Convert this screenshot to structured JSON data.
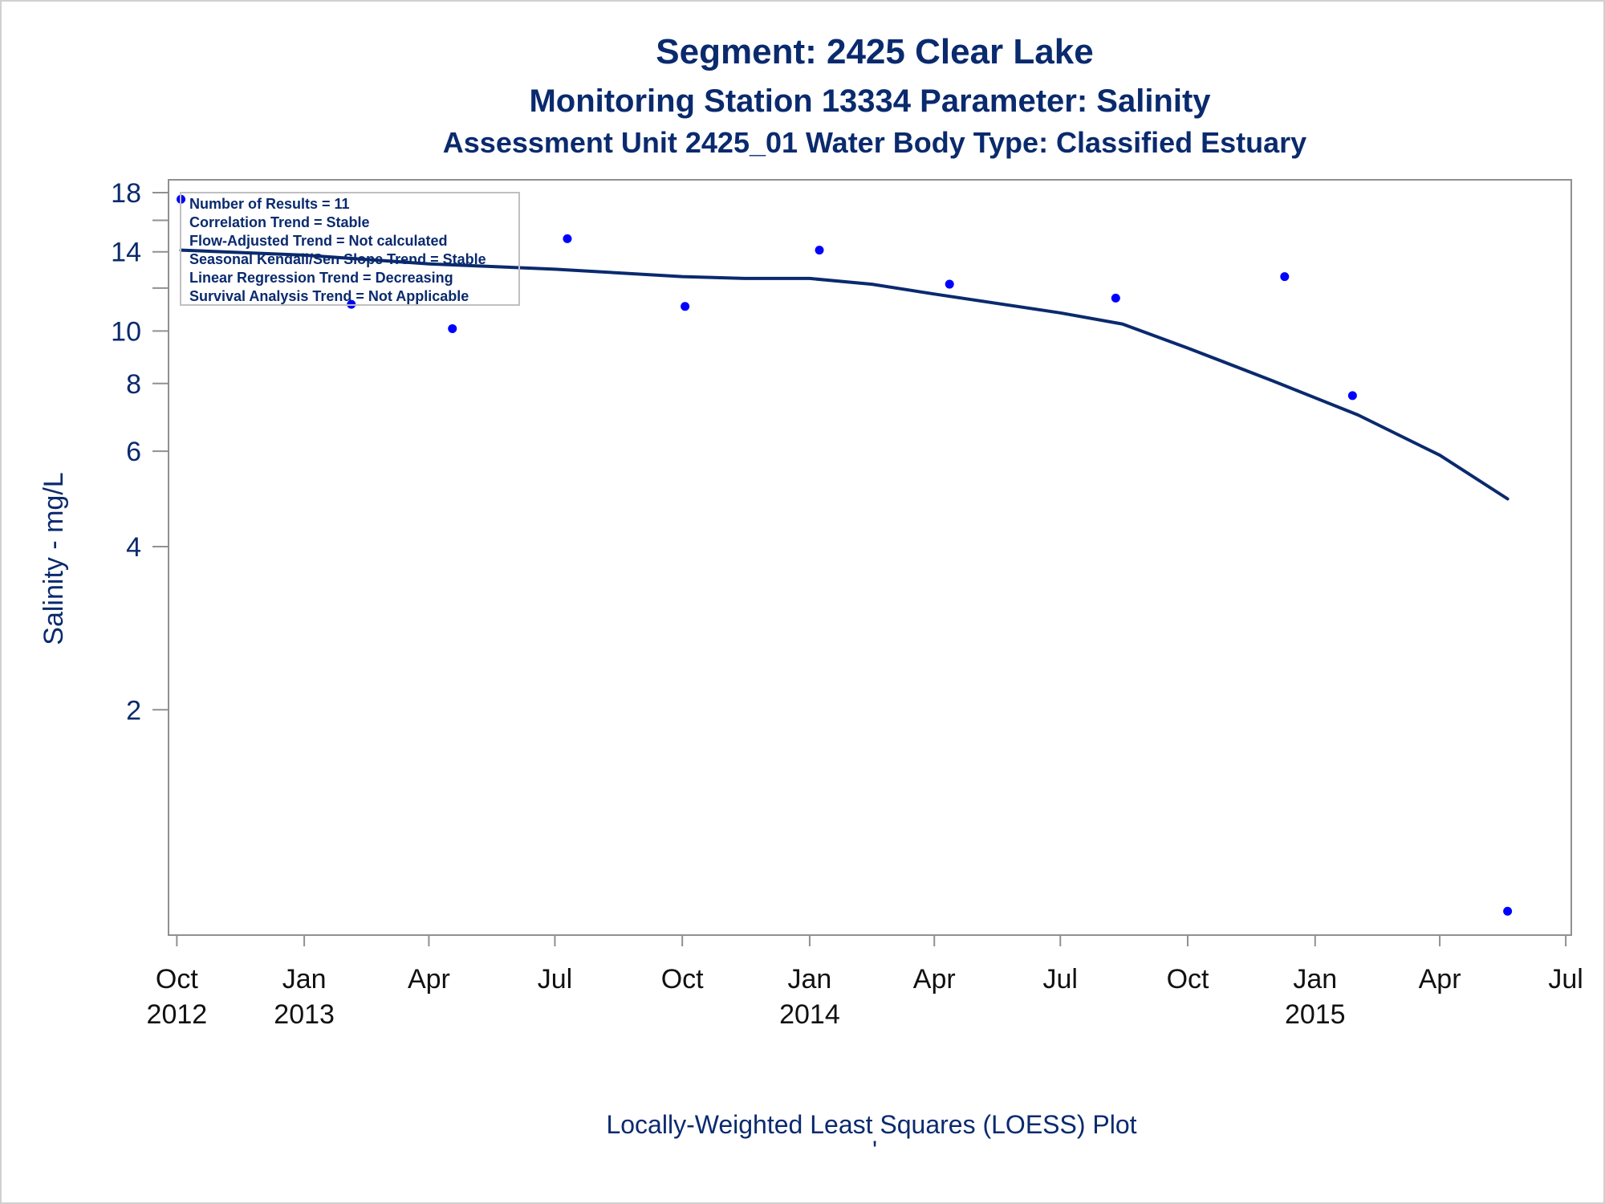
{
  "chart_data": {
    "type": "scatter",
    "title": "Segment: 2425  Clear Lake",
    "subtitle": "Monitoring Station 13334 Parameter: Salinity",
    "subtitle2": "Assessment Unit 2425_01   Water Body Type: Classified Estuary",
    "ylabel": "Salinity - mg/L",
    "footer": "Locally-Weighted Least Squares (LOESS) Plot",
    "footer_mark": "'",
    "y_scale": "log",
    "ylim": [
      0.8,
      18
    ],
    "xlim": [
      "2012-09-25",
      "2015-07-05"
    ],
    "y_ticks": [
      {
        "value": 18,
        "label": "18"
      },
      {
        "value": 16,
        "label": ""
      },
      {
        "value": 14,
        "label": "14"
      },
      {
        "value": 12,
        "label": ""
      },
      {
        "value": 10,
        "label": "10"
      },
      {
        "value": 8,
        "label": "8"
      },
      {
        "value": 6,
        "label": "6"
      },
      {
        "value": 4,
        "label": "4"
      },
      {
        "value": 2,
        "label": "2"
      }
    ],
    "x_ticks": [
      {
        "date": "2012-10-01",
        "month": "Oct",
        "year": "2012"
      },
      {
        "date": "2013-01-01",
        "month": "Jan",
        "year": "2013"
      },
      {
        "date": "2013-04-01",
        "month": "Apr",
        "year": ""
      },
      {
        "date": "2013-07-01",
        "month": "Jul",
        "year": ""
      },
      {
        "date": "2013-10-01",
        "month": "Oct",
        "year": ""
      },
      {
        "date": "2014-01-01",
        "month": "Jan",
        "year": "2014"
      },
      {
        "date": "2014-04-01",
        "month": "Apr",
        "year": ""
      },
      {
        "date": "2014-07-01",
        "month": "Jul",
        "year": ""
      },
      {
        "date": "2014-10-01",
        "month": "Oct",
        "year": ""
      },
      {
        "date": "2015-01-01",
        "month": "Jan",
        "year": "2015"
      },
      {
        "date": "2015-04-01",
        "month": "Apr",
        "year": ""
      },
      {
        "date": "2015-07-01",
        "month": "Jul",
        "year": ""
      }
    ],
    "points": [
      {
        "x": "2012-10-04",
        "y": 17.5
      },
      {
        "x": "2013-02-04",
        "y": 11.2
      },
      {
        "x": "2013-04-18",
        "y": 10.1
      },
      {
        "x": "2013-07-10",
        "y": 14.8
      },
      {
        "x": "2013-10-03",
        "y": 11.1
      },
      {
        "x": "2014-01-08",
        "y": 14.1
      },
      {
        "x": "2014-04-12",
        "y": 12.2
      },
      {
        "x": "2014-08-10",
        "y": 11.5
      },
      {
        "x": "2014-12-10",
        "y": 12.6
      },
      {
        "x": "2015-01-28",
        "y": 7.6
      },
      {
        "x": "2015-05-20",
        "y": 0.85
      }
    ],
    "series": [
      {
        "type": "line",
        "points": [
          {
            "x": "2012-10-04",
            "y": 14.1
          },
          {
            "x": "2013-01-01",
            "y": 13.8
          },
          {
            "x": "2013-04-01",
            "y": 13.3
          },
          {
            "x": "2013-07-01",
            "y": 13.0
          },
          {
            "x": "2013-10-01",
            "y": 12.6
          },
          {
            "x": "2013-11-15",
            "y": 12.5
          },
          {
            "x": "2014-01-01",
            "y": 12.5
          },
          {
            "x": "2014-02-15",
            "y": 12.2
          },
          {
            "x": "2014-04-01",
            "y": 11.7
          },
          {
            "x": "2014-07-01",
            "y": 10.8
          },
          {
            "x": "2014-08-15",
            "y": 10.3
          },
          {
            "x": "2014-10-01",
            "y": 9.3
          },
          {
            "x": "2014-12-01",
            "y": 8.1
          },
          {
            "x": "2015-02-01",
            "y": 7.0
          },
          {
            "x": "2015-04-01",
            "y": 5.9
          },
          {
            "x": "2015-05-20",
            "y": 4.9
          }
        ]
      }
    ],
    "annotations": [
      "Number of Results = 11",
      "Correlation Trend = Stable",
      "Flow-Adjusted Trend = Not calculated",
      "Seasonal Kendall/Sen Slope Trend = Stable",
      "Linear Regression Trend = Decreasing",
      "Survival Analysis Trend = Not Applicable"
    ],
    "colors": {
      "text": "#0a2a6e",
      "points": "#0000ff",
      "line": "#0a2a6e",
      "frame": "#909090"
    }
  }
}
